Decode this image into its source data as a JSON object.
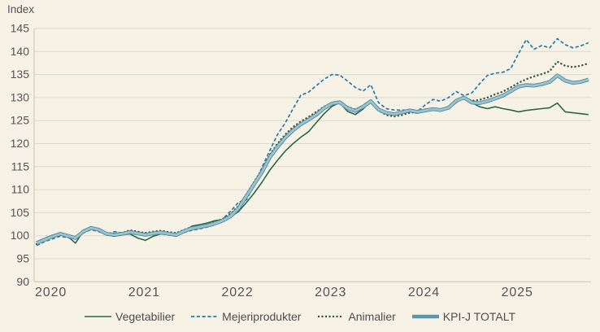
{
  "title": "Index",
  "colors": {
    "background": "#f6f3e6",
    "grid": "#dcdacc",
    "axis": "#c4c3b6",
    "text": "#545454",
    "vegetabilier": "#2b6649",
    "mejeriprodukter": "#2779a8",
    "animalier": "#3d5349",
    "kpi_total_outer": "#53899e",
    "kpi_total_inner": "#9ac3d0",
    "kpi_total_legend": "#5b97ac"
  },
  "chart_data": {
    "type": "line",
    "title": "Index",
    "x_start": "2020-01",
    "x_frequency": "monthly",
    "x_tick_labels": [
      "2020",
      "2021",
      "2022",
      "2023",
      "2024",
      "2025"
    ],
    "ylim": [
      90,
      145
    ],
    "y_ticks": [
      90,
      95,
      100,
      105,
      110,
      115,
      120,
      125,
      130,
      135,
      140,
      145
    ],
    "grid": true,
    "legend_position": "bottom",
    "series": [
      {
        "name": "Vegetabilier",
        "style": "solid",
        "values": [
          98.7,
          99.4,
          100.1,
          100.6,
          99.9,
          98.4,
          101.0,
          101.9,
          101.0,
          100.2,
          99.9,
          100.2,
          100.4,
          99.5,
          99.0,
          99.9,
          100.4,
          100.2,
          99.9,
          100.9,
          102.1,
          102.4,
          102.8,
          103.3,
          103.5,
          104.1,
          105.3,
          107.2,
          109.3,
          111.6,
          114.2,
          116.4,
          118.4,
          120.0,
          121.4,
          122.6,
          124.6,
          126.5,
          128.1,
          128.9,
          127.0,
          126.3,
          127.5,
          129.2,
          127.2,
          126.5,
          126.3,
          126.6,
          126.9,
          126.6,
          127.0,
          127.3,
          127.1,
          127.6,
          128.9,
          130.2,
          128.9,
          128.0,
          127.6,
          128.0,
          127.6,
          127.3,
          126.9,
          127.2,
          127.4,
          127.6,
          127.8,
          128.8,
          126.9,
          126.7,
          126.5,
          126.3
        ]
      },
      {
        "name": "Mejeriprodukter",
        "style": "dashed",
        "values": [
          97.9,
          98.7,
          99.3,
          99.9,
          99.6,
          99.3,
          100.6,
          101.3,
          100.9,
          100.2,
          100.9,
          100.6,
          100.9,
          100.5,
          100.1,
          100.4,
          100.6,
          100.3,
          100.1,
          100.7,
          101.2,
          101.5,
          101.9,
          102.4,
          103.7,
          105.4,
          107.3,
          107.8,
          111.0,
          114.8,
          118.5,
          122.0,
          124.5,
          127.6,
          130.5,
          131.2,
          132.6,
          134.0,
          135.0,
          134.9,
          133.6,
          132.2,
          131.4,
          132.8,
          128.9,
          127.6,
          127.3,
          127.3,
          127.2,
          127.0,
          128.4,
          129.6,
          129.2,
          130.0,
          131.3,
          130.4,
          131.0,
          133.0,
          134.8,
          135.3,
          135.5,
          136.3,
          139.5,
          142.6,
          140.5,
          141.3,
          140.8,
          142.8,
          141.5,
          140.8,
          141.2,
          141.9
        ]
      },
      {
        "name": "Animalier",
        "style": "dotted",
        "values": [
          98.2,
          99.0,
          99.7,
          100.4,
          99.9,
          99.5,
          101.0,
          101.8,
          101.3,
          100.6,
          100.5,
          100.6,
          101.2,
          100.9,
          100.6,
          100.9,
          101.1,
          100.8,
          100.6,
          101.3,
          101.9,
          102.2,
          102.5,
          103.0,
          103.7,
          104.8,
          106.5,
          109.0,
          111.7,
          114.4,
          117.6,
          120.0,
          122.0,
          123.6,
          124.8,
          125.8,
          126.9,
          128.0,
          128.9,
          129.2,
          128.0,
          127.4,
          128.2,
          129.1,
          127.2,
          126.2,
          125.9,
          126.2,
          126.7,
          126.9,
          127.1,
          127.5,
          127.3,
          127.8,
          129.2,
          130.1,
          129.3,
          129.5,
          130.0,
          130.7,
          131.3,
          132.2,
          133.2,
          134.0,
          134.6,
          135.1,
          135.7,
          137.8,
          136.9,
          136.6,
          136.9,
          137.4
        ]
      },
      {
        "name": "KPI-J TOTALT",
        "style": "thick",
        "values": [
          98.4,
          99.1,
          99.8,
          100.4,
          100.0,
          99.5,
          100.9,
          101.7,
          101.3,
          100.4,
          100.2,
          100.4,
          100.8,
          100.5,
          100.2,
          100.5,
          100.7,
          100.4,
          100.2,
          101.0,
          101.6,
          101.9,
          102.2,
          102.7,
          103.3,
          104.3,
          106.0,
          108.6,
          111.2,
          113.8,
          117.0,
          119.3,
          121.3,
          122.9,
          124.2,
          125.2,
          126.3,
          127.7,
          128.7,
          129.0,
          127.7,
          127.1,
          128.0,
          129.2,
          127.4,
          126.7,
          126.4,
          126.8,
          127.2,
          126.9,
          127.2,
          127.5,
          127.3,
          127.8,
          129.3,
          130.0,
          128.9,
          128.8,
          129.2,
          129.8,
          130.4,
          131.4,
          132.4,
          132.7,
          132.6,
          132.9,
          133.4,
          134.8,
          133.7,
          133.2,
          133.4,
          133.9
        ]
      }
    ]
  },
  "legend": {
    "items": [
      {
        "label": "Vegetabilier"
      },
      {
        "label": "Mejeriprodukter"
      },
      {
        "label": "Animalier"
      },
      {
        "label": "KPI-J TOTALT"
      }
    ]
  }
}
